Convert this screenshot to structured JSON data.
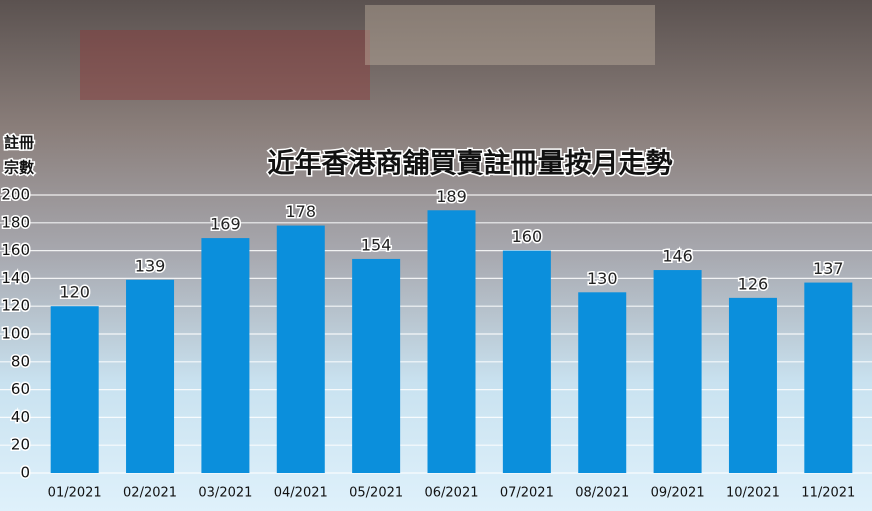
{
  "chart_data": {
    "type": "bar",
    "title": "近年香港商舖買賣註冊量按月走勢",
    "ylabel": [
      "註冊",
      "宗數"
    ],
    "categories": [
      "01/2021",
      "02/2021",
      "03/2021",
      "04/2021",
      "05/2021",
      "06/2021",
      "07/2021",
      "08/2021",
      "09/2021",
      "10/2021",
      "11/2021"
    ],
    "values": [
      120,
      139,
      169,
      178,
      154,
      189,
      160,
      130,
      146,
      126,
      137
    ],
    "color": "#0b8fdc",
    "ylim": [
      0,
      200
    ],
    "yticks": [
      0,
      20,
      40,
      60,
      80,
      100,
      120,
      140,
      160,
      180,
      200
    ],
    "grid": true
  }
}
